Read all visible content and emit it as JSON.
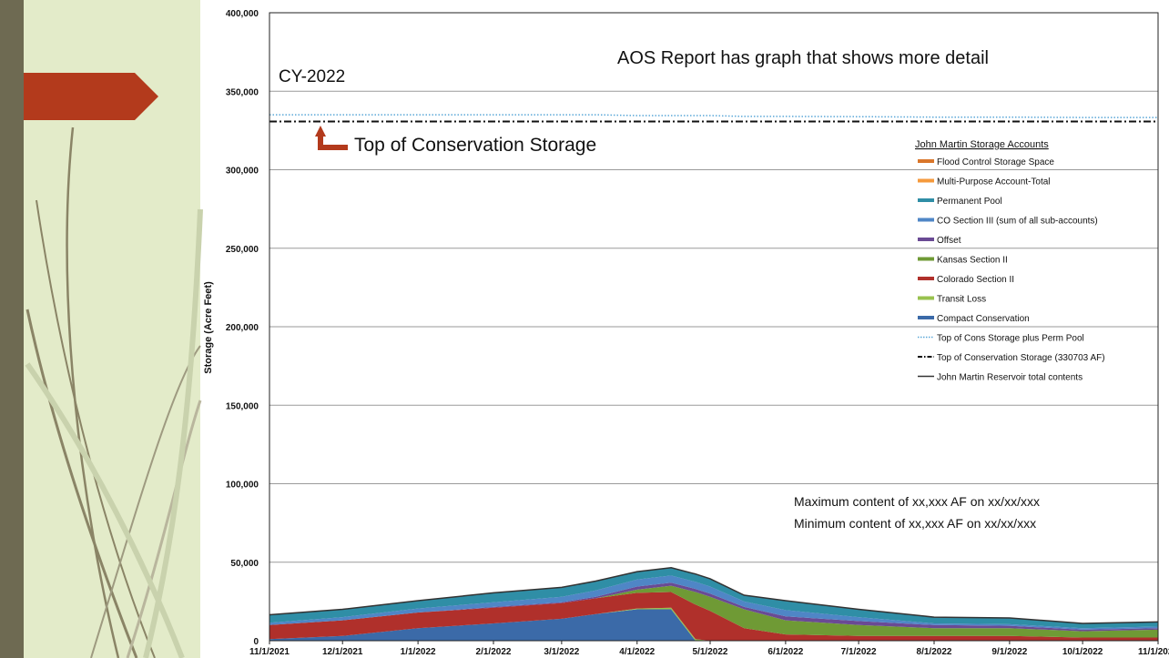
{
  "colors": {
    "background_band": "#e3ebc9",
    "stripe": "#6e6a52",
    "arrow": "#b33a1c"
  },
  "chart_data": {
    "type": "area",
    "stacked": true,
    "title": "CY-2022",
    "ylabel": "Storage (Acre Feet)",
    "xlabel": "",
    "ylim": [
      0,
      400000
    ],
    "grid": true,
    "y_ticks": [
      "0",
      "50,000",
      "100,000",
      "150,000",
      "200,000",
      "250,000",
      "300,000",
      "350,000",
      "400,000"
    ],
    "x": [
      "11/1/2021",
      "12/1/2021",
      "1/1/2022",
      "2/1/2022",
      "3/1/2022",
      "3/15/2022",
      "4/1/2022",
      "4/15/2022",
      "4/25/2022",
      "5/1/2022",
      "5/15/2022",
      "6/1/2022",
      "7/1/2022",
      "8/1/2022",
      "9/1/2022",
      "10/1/2022",
      "11/1/2022"
    ],
    "x_ticks": [
      "11/1/2021",
      "12/1/2021",
      "1/1/2022",
      "2/1/2022",
      "3/1/2022",
      "4/1/2022",
      "5/1/2022",
      "6/1/2022",
      "7/1/2022",
      "8/1/2022",
      "9/1/2022",
      "10/1/2022",
      "11/1/2022"
    ],
    "series": [
      {
        "name": "Compact Conservation",
        "color": "#3b6aa8",
        "values": [
          1000,
          3000,
          8000,
          11000,
          14000,
          17000,
          20000,
          20000,
          0,
          0,
          0,
          0,
          0,
          0,
          0,
          0,
          0
        ]
      },
      {
        "name": "Transit Loss",
        "color": "#98c24e",
        "values": [
          0,
          0,
          0,
          0,
          0,
          0,
          500,
          1000,
          1000,
          0,
          0,
          0,
          0,
          0,
          0,
          0,
          0
        ]
      },
      {
        "name": "Colorado Section II",
        "color": "#b0302b",
        "values": [
          9000,
          10000,
          10000,
          10000,
          10000,
          10000,
          10000,
          10000,
          22000,
          19000,
          8000,
          4000,
          3000,
          3000,
          3000,
          2000,
          2000
        ]
      },
      {
        "name": "Kansas Section II",
        "color": "#6f9a35",
        "values": [
          0,
          0,
          0,
          0,
          0,
          0,
          2000,
          4000,
          8000,
          9000,
          12000,
          9000,
          7000,
          5000,
          5000,
          4000,
          5000
        ]
      },
      {
        "name": "Offset",
        "color": "#6a4a94",
        "values": [
          0,
          0,
          0,
          500,
          500,
          1000,
          2000,
          2000,
          2000,
          2000,
          1500,
          2500,
          2500,
          2000,
          1500,
          1000,
          1000
        ]
      },
      {
        "name": "CO Section III (sum of all sub-accounts)",
        "color": "#4f86c6",
        "values": [
          1500,
          2000,
          2500,
          3000,
          3500,
          4000,
          4500,
          4500,
          4500,
          4500,
          3500,
          4000,
          2500,
          1000,
          1000,
          1000,
          1000
        ]
      },
      {
        "name": "Permanent Pool",
        "color": "#2f8ea6",
        "values": [
          5000,
          5000,
          5000,
          6000,
          6000,
          6000,
          5000,
          5000,
          5000,
          5000,
          4000,
          6000,
          5000,
          4000,
          4000,
          3000,
          3000
        ]
      },
      {
        "name": "Multi-Purpose Account-Total",
        "color": "#f59a3c",
        "values": [
          0,
          0,
          0,
          0,
          0,
          0,
          0,
          0,
          0,
          0,
          0,
          0,
          0,
          0,
          0,
          0,
          0
        ]
      },
      {
        "name": "Flood Control Storage Space",
        "color": "#d9762a",
        "values": [
          0,
          0,
          0,
          0,
          0,
          0,
          0,
          0,
          0,
          0,
          0,
          0,
          0,
          0,
          0,
          0,
          0
        ]
      }
    ],
    "lines": [
      {
        "name": "Top of Cons Storage plus Perm Pool",
        "color": "#5aa7d8",
        "style": "dotted",
        "values": [
          335000,
          335000,
          335000,
          335000,
          335000,
          335000,
          334500,
          334500,
          334500,
          334500,
          334000,
          334000,
          333800,
          333500,
          333500,
          333300,
          333300
        ]
      },
      {
        "name": "Top of Conservation Storage (330703 AF)",
        "color": "#111111",
        "style": "dashdot",
        "values": [
          330703,
          330703,
          330703,
          330703,
          330703,
          330703,
          330703,
          330703,
          330703,
          330703,
          330703,
          330703,
          330703,
          330703,
          330703,
          330703,
          330703
        ]
      },
      {
        "name": "John Martin Reservoir total contents",
        "color": "#333333",
        "style": "solid",
        "values": [
          16500,
          20000,
          25500,
          30500,
          34000,
          38000,
          44000,
          46500,
          42500,
          39500,
          29000,
          25500,
          20000,
          15000,
          14500,
          11000,
          12000
        ]
      }
    ],
    "legend": {
      "title": "John Martin Storage Accounts",
      "placement": "right",
      "entries": [
        {
          "label": "Flood Control Storage Space",
          "color": "#d9762a",
          "kind": "patch"
        },
        {
          "label": "Multi-Purpose Account-Total",
          "color": "#f59a3c",
          "kind": "patch"
        },
        {
          "label": "Permanent Pool",
          "color": "#2f8ea6",
          "kind": "patch"
        },
        {
          "label": "CO Section III (sum of all sub-accounts)",
          "color": "#4f86c6",
          "kind": "patch"
        },
        {
          "label": "Offset",
          "color": "#6a4a94",
          "kind": "patch"
        },
        {
          "label": "Kansas Section II",
          "color": "#6f9a35",
          "kind": "patch"
        },
        {
          "label": "Colorado Section II",
          "color": "#b0302b",
          "kind": "patch"
        },
        {
          "label": "Transit Loss",
          "color": "#98c24e",
          "kind": "patch"
        },
        {
          "label": "Compact Conservation",
          "color": "#3b6aa8",
          "kind": "patch"
        },
        {
          "label": "Top of Cons Storage plus Perm Pool",
          "color": "#5aa7d8",
          "kind": "dotted"
        },
        {
          "label": "Top of Conservation Storage (330703 AF)",
          "color": "#111111",
          "kind": "dashdot"
        },
        {
          "label": "John Martin Reservoir total contents",
          "color": "#333333",
          "kind": "solid"
        }
      ]
    },
    "annotations": {
      "aos_note": "AOS Report has graph that shows more detail",
      "callout": "Top of Conservation Storage",
      "max_line": "Maximum content of xx,xxx AF on xx/xx/xxx",
      "min_line": "Minimum content of xx,xxx AF on xx/xx/xxx"
    }
  }
}
